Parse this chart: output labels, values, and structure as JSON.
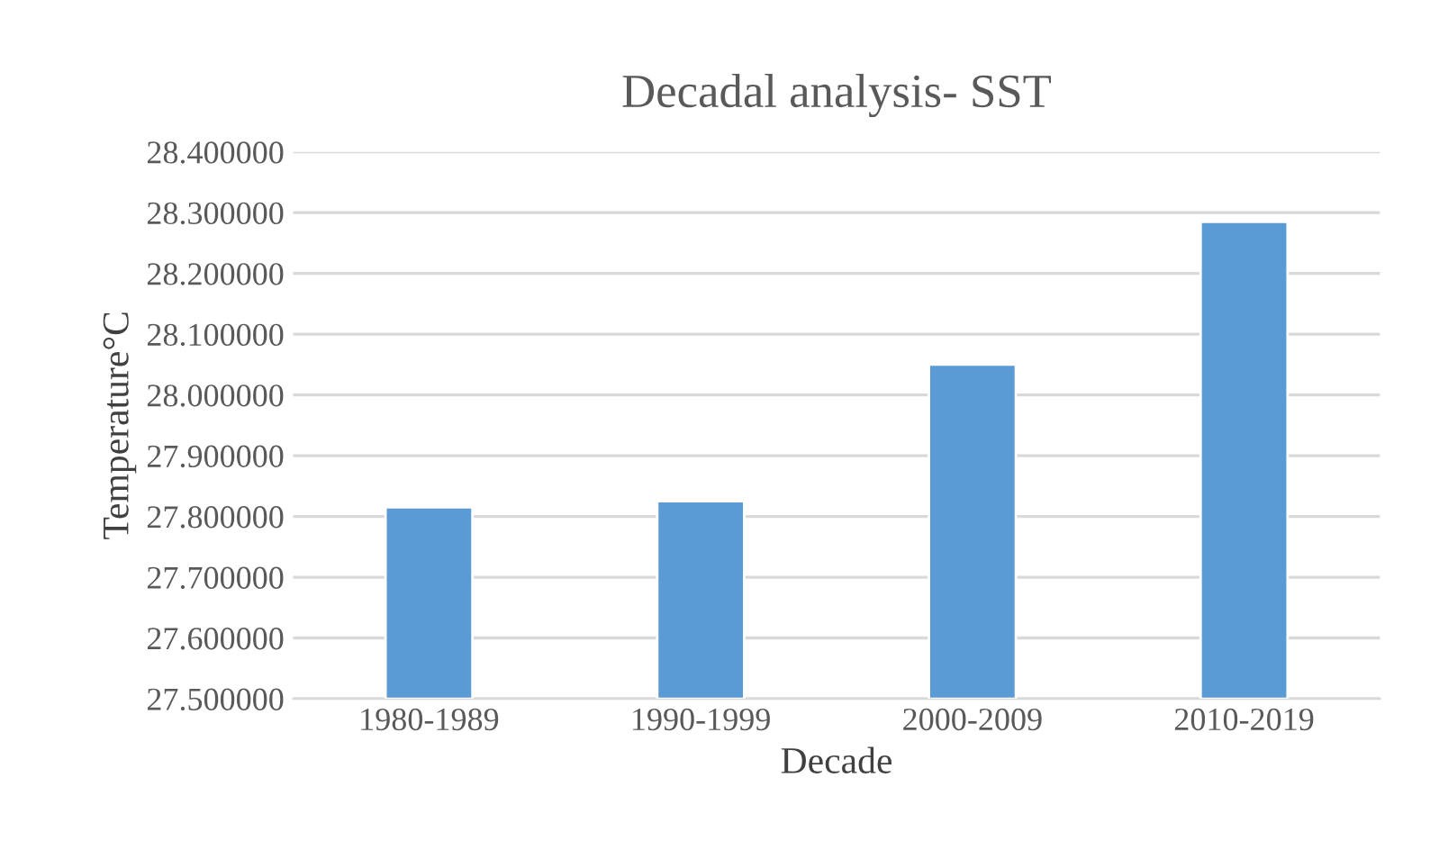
{
  "chart_data": {
    "type": "bar",
    "title": "Decadal analysis- SST",
    "xlabel": "Decade",
    "ylabel": "Temperature°C",
    "categories": [
      "1980-1989",
      "1990-1999",
      "2000-2009",
      "2010-2019"
    ],
    "values": [
      27.815,
      27.825,
      28.05,
      28.285
    ],
    "color": "#5b9bd5",
    "ylim": [
      27.5,
      28.4
    ],
    "yticks": [
      {
        "value": 27.5,
        "label": "27.500000"
      },
      {
        "value": 27.6,
        "label": "27.600000"
      },
      {
        "value": 27.7,
        "label": "27.700000"
      },
      {
        "value": 27.8,
        "label": "27.800000"
      },
      {
        "value": 27.9,
        "label": "27.900000"
      },
      {
        "value": 28.0,
        "label": "28.000000"
      },
      {
        "value": 28.1,
        "label": "28.100000"
      },
      {
        "value": 28.2,
        "label": "28.200000"
      },
      {
        "value": 28.3,
        "label": "28.300000"
      },
      {
        "value": 28.4,
        "label": "28.400000"
      }
    ],
    "grid": "y",
    "legend": false
  }
}
